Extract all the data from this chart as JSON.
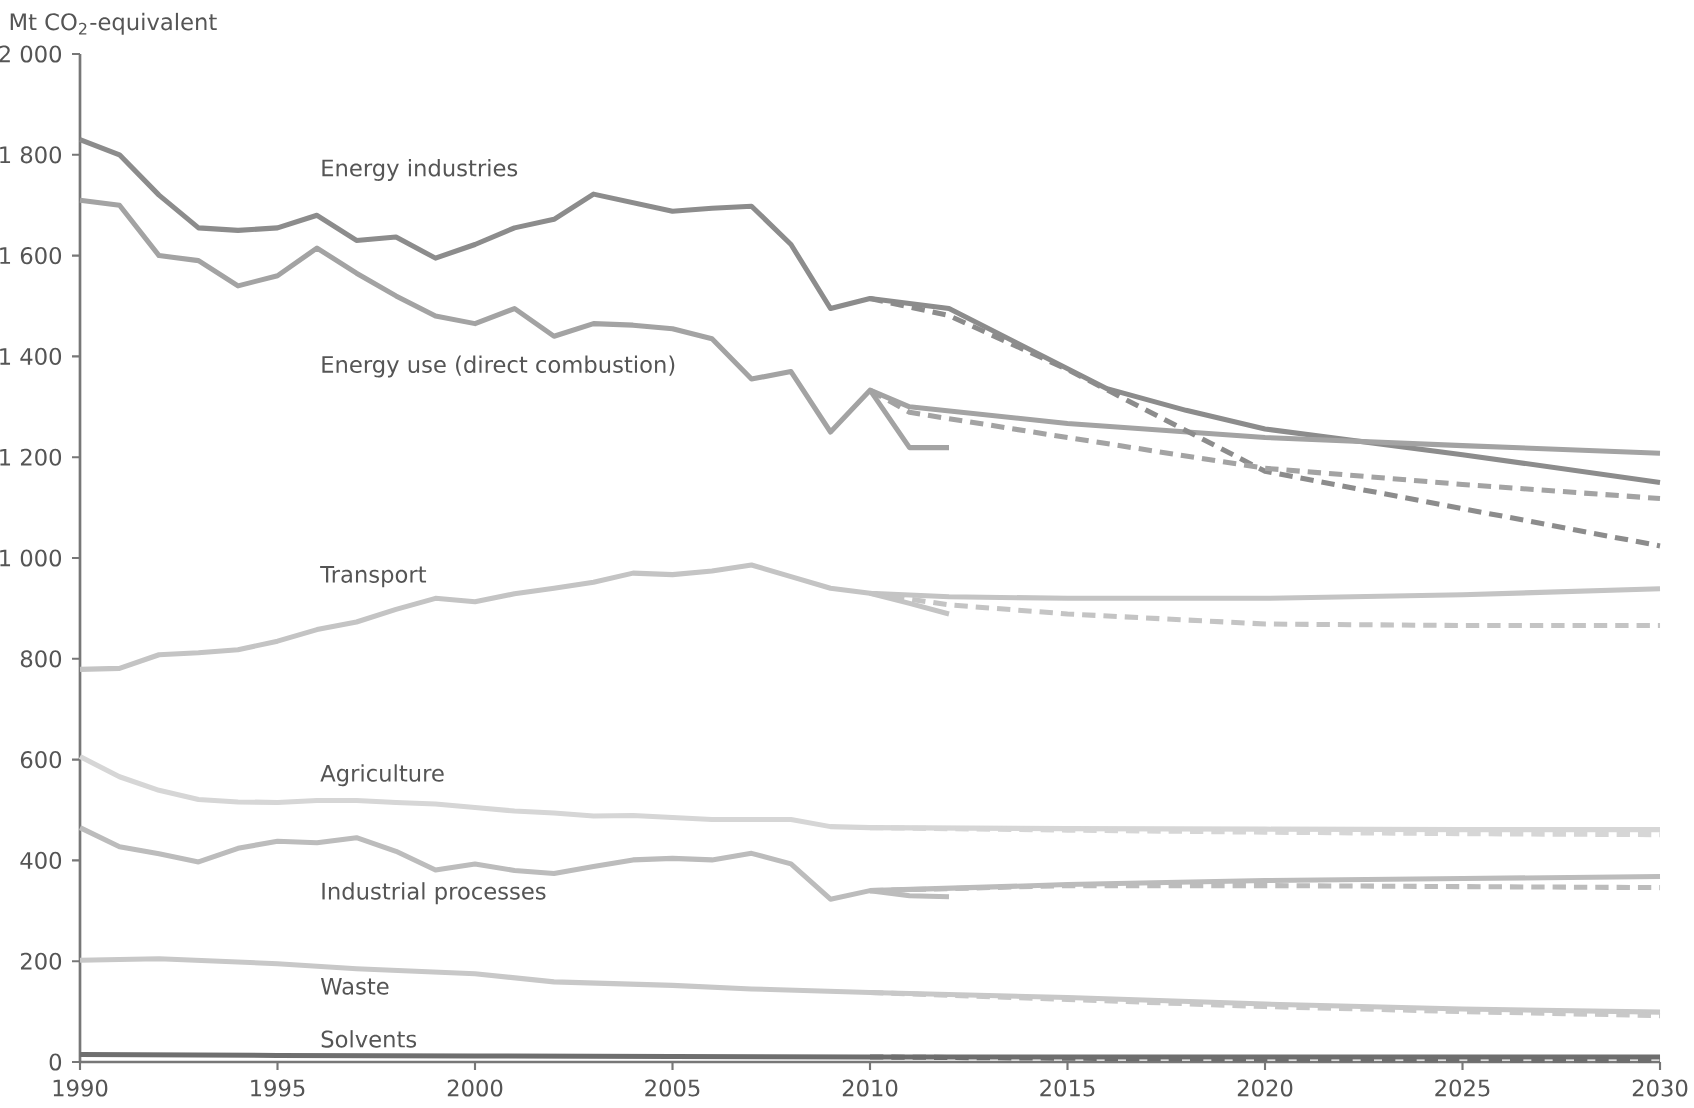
{
  "chart_data": {
    "type": "line",
    "ylabel": "Mt CO$_{2}$-equivalent",
    "xlim": [
      1990,
      2030
    ],
    "ylim": [
      0,
      2000
    ],
    "xticks": [
      1990,
      1995,
      2000,
      2005,
      2010,
      2015,
      2020,
      2025,
      2030
    ],
    "yticks": [
      {
        "value": 0,
        "label": "0"
      },
      {
        "value": 200,
        "label": "200"
      },
      {
        "value": 400,
        "label": "400"
      },
      {
        "value": 600,
        "label": "600"
      },
      {
        "value": 800,
        "label": "800"
      },
      {
        "value": 1000,
        "label": "1 000"
      },
      {
        "value": 1200,
        "label": "1 200"
      },
      {
        "value": 1400,
        "label": "1 400"
      },
      {
        "value": 1600,
        "label": "1 600"
      },
      {
        "value": 1800,
        "label": "1 800"
      },
      {
        "value": 2000,
        "label": "2 000"
      }
    ],
    "grid": false,
    "legend": false,
    "marker": "none",
    "series": [
      {
        "name": "Energy industries",
        "color": "#8c8c8c",
        "x": [
          1990,
          1991,
          1992,
          1993,
          1994,
          1995,
          1996,
          1997,
          1998,
          1999,
          2000,
          2001,
          2002,
          2003,
          2004,
          2005,
          2006,
          2007,
          2008,
          2009,
          2010,
          2012,
          2016,
          2018,
          2020,
          2025,
          2030
        ],
        "values": [
          1830,
          1800,
          1720,
          1655,
          1650,
          1655,
          1680,
          1630,
          1637,
          1595,
          1622,
          1655,
          1672,
          1722,
          1705,
          1688,
          1694,
          1698,
          1622,
          1495,
          1515,
          1495,
          1336,
          1293,
          1256,
          1205,
          1150
        ]
      },
      {
        "name": "Energy use (direct combustion)",
        "color": "#a3a3a3",
        "x": [
          1990,
          1991,
          1992,
          1993,
          1994,
          1995,
          1996,
          1997,
          1998,
          1999,
          2000,
          2001,
          2002,
          2003,
          2004,
          2005,
          2006,
          2007,
          2008,
          2009,
          2010,
          2011,
          2015,
          2020,
          2025,
          2030
        ],
        "values": [
          1710,
          1700,
          1600,
          1590,
          1540,
          1560,
          1615,
          1565,
          1520,
          1480,
          1465,
          1495,
          1440,
          1465,
          1462,
          1455,
          1435,
          1355,
          1370,
          1250,
          1333,
          1300,
          1267,
          1239,
          1223,
          1208
        ]
      },
      {
        "name": "Transport",
        "color": "#c4c4c4",
        "x": [
          1990,
          1991,
          1992,
          1993,
          1994,
          1995,
          1996,
          1997,
          1998,
          1999,
          2000,
          2001,
          2002,
          2003,
          2004,
          2005,
          2006,
          2007,
          2008,
          2009,
          2010,
          2012,
          2015,
          2020,
          2025,
          2030
        ],
        "values": [
          779,
          781,
          808,
          812,
          818,
          835,
          858,
          873,
          898,
          920,
          913,
          929,
          940,
          952,
          970,
          967,
          974,
          986,
          963,
          940,
          930,
          923,
          920,
          920,
          927,
          939
        ]
      },
      {
        "name": "Agriculture",
        "color": "#d6d6d6",
        "x": [
          1990,
          1991,
          1992,
          1993,
          1994,
          1995,
          1996,
          1997,
          1998,
          1999,
          2000,
          2001,
          2002,
          2003,
          2004,
          2005,
          2006,
          2007,
          2008,
          2009,
          2010,
          2015,
          2020,
          2025,
          2030
        ],
        "values": [
          606,
          566,
          539,
          521,
          516,
          515,
          519,
          519,
          515,
          512,
          505,
          498,
          494,
          488,
          489,
          485,
          481,
          481,
          481,
          467,
          465,
          463,
          462,
          461,
          461
        ]
      },
      {
        "name": "Industrial processes",
        "color": "#bcbcbc",
        "x": [
          1990,
          1991,
          1992,
          1993,
          1994,
          1995,
          1996,
          1997,
          1998,
          1999,
          2000,
          2001,
          2002,
          2003,
          2004,
          2005,
          2006,
          2007,
          2008,
          2009,
          2010,
          2015,
          2020,
          2025,
          2030
        ],
        "values": [
          465,
          427,
          413,
          397,
          424,
          438,
          435,
          445,
          418,
          381,
          393,
          380,
          374,
          388,
          401,
          404,
          401,
          414,
          393,
          323,
          340,
          352,
          360,
          364,
          368
        ]
      },
      {
        "name": "Waste",
        "color": "#c8c8c8",
        "x": [
          1990,
          1992,
          1995,
          1997,
          2000,
          2002,
          2005,
          2007,
          2010,
          2015,
          2020,
          2025,
          2030
        ],
        "values": [
          202,
          205,
          195,
          185,
          175,
          159,
          152,
          145,
          138,
          128,
          115,
          105,
          99
        ]
      },
      {
        "name": "Solvents",
        "color": "#6e6e6e",
        "x": [
          1990,
          1995,
          2000,
          2005,
          2010,
          2020,
          2030
        ],
        "values": [
          15,
          13,
          12,
          11,
          10,
          10,
          10
        ]
      },
      {
        "color": "#8c8c8c",
        "line_style": "dashed",
        "x": [
          2010,
          2012,
          2015,
          2020,
          2025,
          2030
        ],
        "values": [
          1515,
          1481,
          1374,
          1172,
          1098,
          1024
        ]
      },
      {
        "color": "#a3a3a3",
        "line_style": "dashed",
        "x": [
          2010,
          2011,
          2015,
          2020,
          2025,
          2030
        ],
        "values": [
          1333,
          1289,
          1239,
          1178,
          1146,
          1118
        ]
      },
      {
        "color": "#c4c4c4",
        "line_style": "dashed",
        "x": [
          2010,
          2012,
          2015,
          2020,
          2025,
          2030
        ],
        "values": [
          930,
          907,
          889,
          869,
          866,
          866
        ]
      },
      {
        "color": "#d6d6d6",
        "line_style": "dashed",
        "x": [
          2010,
          2015,
          2020,
          2025,
          2030
        ],
        "values": [
          465,
          460,
          456,
          453,
          451
        ]
      },
      {
        "color": "#bcbcbc",
        "line_style": "dashed",
        "x": [
          2010,
          2015,
          2020,
          2025,
          2030
        ],
        "values": [
          340,
          350,
          350,
          348,
          346
        ]
      },
      {
        "color": "#c8c8c8",
        "line_style": "dashed",
        "x": [
          2010,
          2015,
          2020,
          2025,
          2030
        ],
        "values": [
          138,
          124,
          110,
          100,
          92
        ]
      },
      {
        "color": "#6e6e6e",
        "line_style": "dashed",
        "x": [
          2010,
          2020,
          2030
        ],
        "values": [
          10,
          5,
          3
        ]
      },
      {
        "color": "#a3a3a3",
        "x": [
          2010,
          2011,
          2012
        ],
        "values": [
          1333,
          1219,
          1219
        ]
      },
      {
        "color": "#c4c4c4",
        "x": [
          2010,
          2011,
          2012
        ],
        "values": [
          930,
          910,
          889
        ]
      },
      {
        "color": "#bcbcbc",
        "x": [
          2010,
          2011,
          2012
        ],
        "values": [
          340,
          330,
          328
        ]
      }
    ]
  }
}
